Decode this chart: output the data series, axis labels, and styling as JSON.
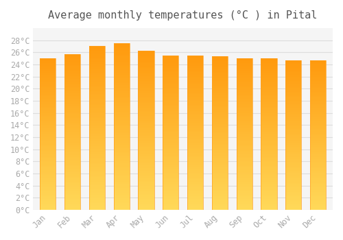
{
  "title": "Average monthly temperatures (°C ) in Pital",
  "months": [
    "Jan",
    "Feb",
    "Mar",
    "Apr",
    "May",
    "Jun",
    "Jul",
    "Aug",
    "Sep",
    "Oct",
    "Nov",
    "Dec"
  ],
  "values": [
    25.0,
    25.7,
    27.0,
    27.5,
    26.3,
    25.5,
    25.5,
    25.3,
    25.0,
    25.0,
    24.7,
    24.7
  ],
  "bar_color_top": "#FFA500",
  "bar_color_bottom": "#FFD700",
  "bar_edge_color": "#FFA500",
  "background_color": "#ffffff",
  "plot_bg_color": "#f5f5f5",
  "grid_color": "#dddddd",
  "tick_label_color": "#aaaaaa",
  "title_color": "#555555",
  "ylim": [
    0,
    30
  ],
  "yticks": [
    0,
    2,
    4,
    6,
    8,
    10,
    12,
    14,
    16,
    18,
    20,
    22,
    24,
    26,
    28
  ],
  "title_fontsize": 11,
  "tick_fontsize": 8.5,
  "font_family": "monospace"
}
